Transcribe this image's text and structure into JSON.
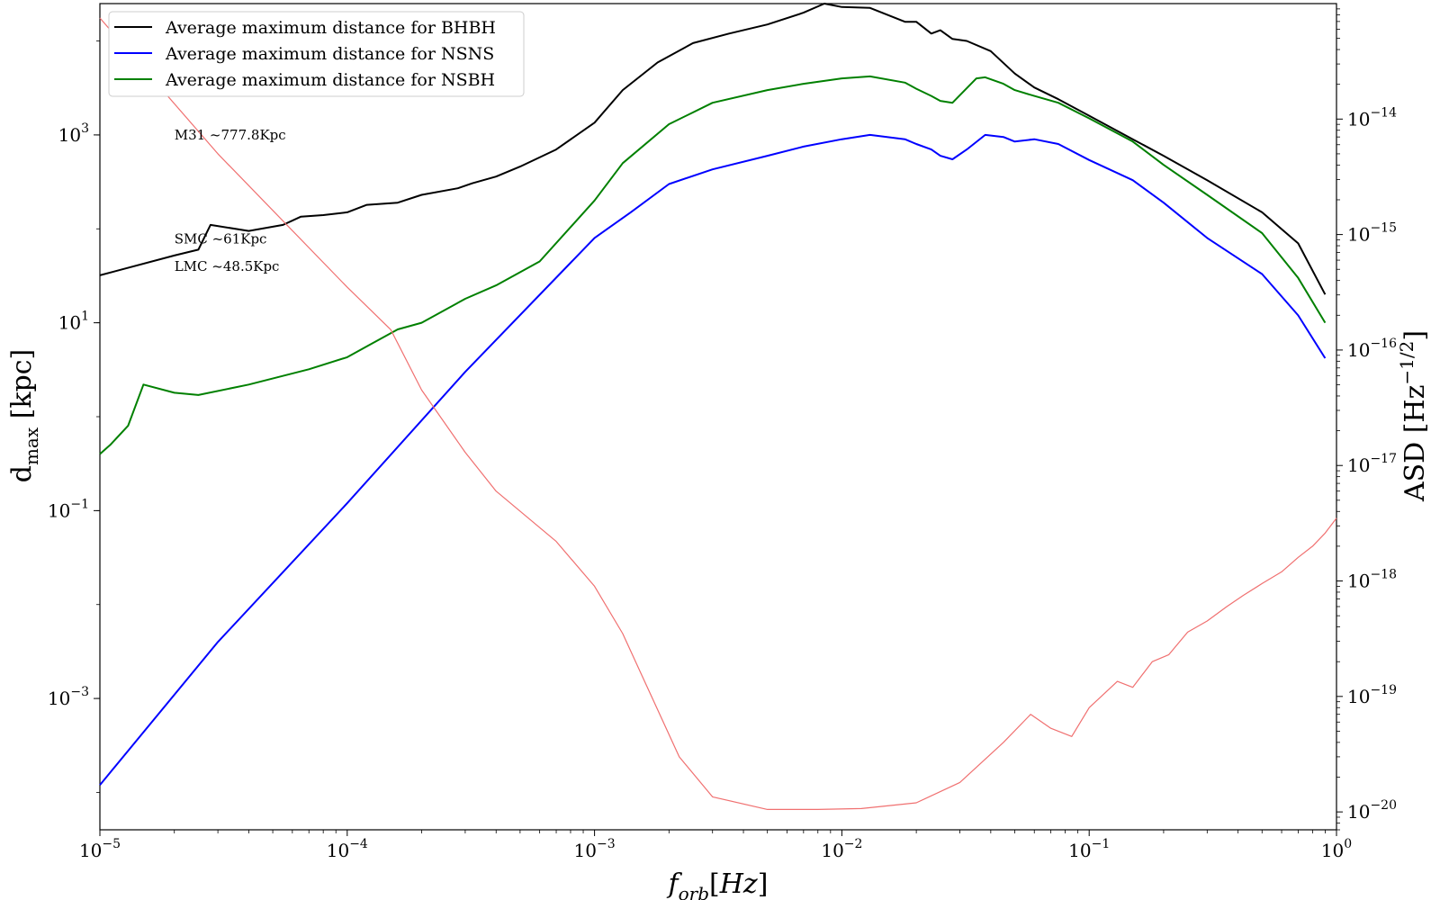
{
  "chart_data": {
    "type": "line",
    "title": "",
    "xlabel": "f_orb[Hz]",
    "ylabel": "d_max [kpc]",
    "ylabel_right": "ASD [Hz^-1/2]",
    "xscale": "log",
    "yscale": "log",
    "y2scale": "log",
    "xlim": [
      1e-05,
      1
    ],
    "ylim": [
      4e-05,
      25000
    ],
    "y2lim": [
      7e-21,
      1e-13
    ],
    "grid": false,
    "legend_position": "top-left",
    "x_ticks": [
      {
        "exp": "-5"
      },
      {
        "exp": "-4"
      },
      {
        "exp": "-3"
      },
      {
        "exp": "-2"
      },
      {
        "exp": "-1"
      },
      {
        "exp": "0"
      }
    ],
    "y_ticks": [
      {
        "value": 0.001,
        "exp": "-3"
      },
      {
        "value": 0.1,
        "exp": "-1"
      },
      {
        "value": 10,
        "exp": "1"
      },
      {
        "value": 1000,
        "exp": "3"
      }
    ],
    "y2_ticks": [
      {
        "value": 1e-20,
        "exp": "-20"
      },
      {
        "value": 1e-19,
        "exp": "-19"
      },
      {
        "value": 1e-18,
        "exp": "-18"
      },
      {
        "value": 1e-17,
        "exp": "-17"
      },
      {
        "value": 1e-16,
        "exp": "-16"
      },
      {
        "value": 1e-15,
        "exp": "-15"
      },
      {
        "value": 1e-14,
        "exp": "-14"
      }
    ],
    "annotations": [
      {
        "text": "M31 ~777.8Kpc",
        "x": 2e-05,
        "y": 1000
      },
      {
        "text": "SMC ~61Kpc",
        "x": 2e-05,
        "y": 78
      },
      {
        "text": "LMC ~48.5Kpc",
        "x": 2e-05,
        "y": 40
      }
    ],
    "series": [
      {
        "name": "Average maximum distance for BHBH",
        "color": "#000000",
        "axis": "left",
        "x": [
          1e-05,
          2e-05,
          2.5e-05,
          2.8e-05,
          4e-05,
          5.5e-05,
          6.5e-05,
          8e-05,
          0.0001,
          0.00012,
          0.00016,
          0.0002,
          0.00028,
          0.00032,
          0.0004,
          0.0005,
          0.0007,
          0.001,
          0.0013,
          0.0018,
          0.0025,
          0.0035,
          0.005,
          0.007,
          0.0085,
          0.01,
          0.013,
          0.018,
          0.02,
          0.023,
          0.025,
          0.028,
          0.032,
          0.04,
          0.05,
          0.06,
          0.075,
          0.1,
          0.15,
          0.2,
          0.3,
          0.5,
          0.7,
          0.9
        ],
        "y": [
          32,
          52,
          60,
          110,
          95,
          110,
          135,
          140,
          150,
          180,
          190,
          230,
          270,
          305,
          360,
          460,
          700,
          1350,
          3000,
          5900,
          9500,
          12000,
          15000,
          20000,
          25000,
          23000,
          22500,
          16000,
          16000,
          12000,
          13000,
          10500,
          10000,
          7800,
          4500,
          3200,
          2400,
          1600,
          900,
          600,
          330,
          150,
          70,
          20
        ]
      },
      {
        "name": "Average maximum distance for NSNS",
        "color": "#0000ff",
        "axis": "left",
        "x": [
          1e-05,
          3e-05,
          0.0001,
          0.0003,
          0.001,
          0.0014,
          0.002,
          0.003,
          0.005,
          0.007,
          0.01,
          0.013,
          0.018,
          0.02,
          0.023,
          0.025,
          0.028,
          0.032,
          0.038,
          0.045,
          0.05,
          0.06,
          0.075,
          0.1,
          0.15,
          0.2,
          0.3,
          0.5,
          0.7,
          0.9
        ],
        "y": [
          0.00012,
          0.004,
          0.12,
          3,
          80,
          150,
          300,
          430,
          600,
          750,
          900,
          1000,
          900,
          800,
          700,
          600,
          550,
          700,
          1000,
          950,
          850,
          900,
          800,
          540,
          330,
          190,
          80,
          33,
          12,
          4.2
        ]
      },
      {
        "name": "Average maximum distance for NSBH",
        "color": "#008000",
        "axis": "left",
        "x": [
          1e-05,
          1.1e-05,
          1.3e-05,
          1.5e-05,
          2e-05,
          2.5e-05,
          4e-05,
          7e-05,
          0.0001,
          0.00013,
          0.00016,
          0.0002,
          0.0003,
          0.0004,
          0.0006,
          0.001,
          0.0013,
          0.002,
          0.003,
          0.005,
          0.007,
          0.01,
          0.013,
          0.018,
          0.02,
          0.023,
          0.025,
          0.028,
          0.035,
          0.038,
          0.045,
          0.05,
          0.06,
          0.075,
          0.1,
          0.15,
          0.2,
          0.3,
          0.5,
          0.7,
          0.9
        ],
        "y": [
          0.4,
          0.5,
          0.8,
          2.2,
          1.8,
          1.7,
          2.2,
          3.2,
          4.3,
          6.3,
          8.5,
          10,
          18,
          25,
          45,
          200,
          500,
          1300,
          2200,
          3000,
          3500,
          4000,
          4200,
          3600,
          3100,
          2600,
          2300,
          2200,
          4000,
          4100,
          3500,
          3000,
          2600,
          2200,
          1500,
          850,
          480,
          230,
          90,
          30,
          10
        ]
      },
      {
        "name": "",
        "color": "#f07070",
        "axis": "right",
        "x": [
          1e-05,
          3e-05,
          0.0001,
          0.00015,
          0.0002,
          0.0003,
          0.0004,
          0.0007,
          0.001,
          0.0013,
          0.0017,
          0.0022,
          0.003,
          0.005,
          0.008,
          0.012,
          0.02,
          0.03,
          0.045,
          0.058,
          0.07,
          0.085,
          0.1,
          0.13,
          0.15,
          0.18,
          0.21,
          0.25,
          0.3,
          0.36,
          0.42,
          0.5,
          0.6,
          0.7,
          0.8,
          0.9,
          1.0
        ],
        "y": [
          7.5e-14,
          5e-15,
          3.5e-16,
          1.5e-16,
          4.5e-17,
          1.3e-17,
          6e-18,
          2.2e-18,
          9e-19,
          3.5e-19,
          1e-19,
          3e-20,
          1.35e-20,
          1.05e-20,
          1.05e-20,
          1.07e-20,
          1.2e-20,
          1.8e-20,
          4e-20,
          7e-20,
          5.3e-20,
          4.5e-20,
          8e-20,
          1.35e-19,
          1.2e-19,
          2e-19,
          2.3e-19,
          3.6e-19,
          4.5e-19,
          6e-19,
          7.5e-19,
          9.5e-19,
          1.2e-18,
          1.6e-18,
          2e-18,
          2.6e-18,
          3.5e-18
        ]
      }
    ]
  }
}
